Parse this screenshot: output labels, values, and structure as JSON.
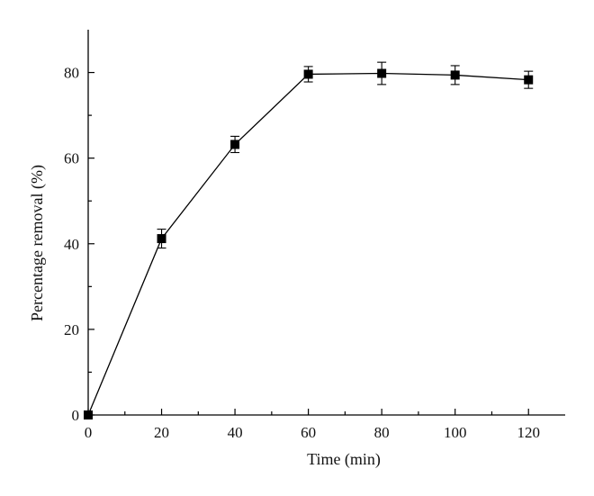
{
  "chart_data": {
    "type": "line",
    "title": "",
    "xlabel": "Time (min)",
    "ylabel": "Percentage removal (%)",
    "xlim": [
      0,
      130
    ],
    "ylim": [
      0,
      90
    ],
    "xticks": [
      0,
      20,
      40,
      60,
      80,
      100,
      120
    ],
    "yticks": [
      0,
      20,
      40,
      60,
      80
    ],
    "grid": false,
    "series": [
      {
        "x": [
          0,
          20,
          40,
          60,
          80,
          100,
          120
        ],
        "y": [
          0,
          41.2,
          63.2,
          79.6,
          79.8,
          79.4,
          78.3
        ],
        "error": [
          0,
          2.2,
          1.9,
          1.8,
          2.6,
          2.2,
          2.0
        ],
        "marker": "square",
        "color": "#000000"
      }
    ]
  }
}
